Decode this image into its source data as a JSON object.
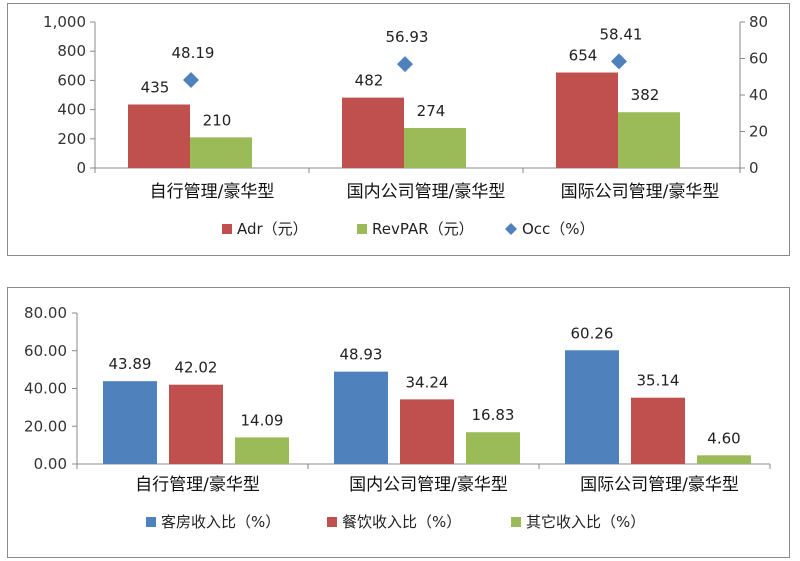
{
  "chart_data": [
    {
      "type": "bar",
      "categories": [
        "自行管理/豪华型",
        "国内公司管理/豪华型",
        "国际公司管理/豪华型"
      ],
      "series": [
        {
          "name": "Adr（元）",
          "type": "bar",
          "axis": "left",
          "color": "#c0504d",
          "values": [
            435,
            482,
            654
          ],
          "labels": [
            "435",
            "482",
            "654"
          ]
        },
        {
          "name": "RevPAR（元）",
          "type": "bar",
          "axis": "left",
          "color": "#9bbb59",
          "values": [
            210,
            274,
            382
          ],
          "labels": [
            "210",
            "274",
            "382"
          ]
        },
        {
          "name": "Occ（%）",
          "type": "scatter",
          "marker": "diamond",
          "axis": "right",
          "color": "#4f81bd",
          "values": [
            48.19,
            56.93,
            58.41
          ],
          "labels": [
            "48.19",
            "56.93",
            "58.41"
          ]
        }
      ],
      "ylim": [
        0,
        1000
      ],
      "yticks": [
        "0",
        "200",
        "400",
        "600",
        "800",
        "1,000"
      ],
      "y2lim": [
        0,
        80
      ],
      "y2ticks": [
        "0",
        "20",
        "40",
        "60",
        "80"
      ],
      "legend_position": "bottom",
      "grid": false
    },
    {
      "type": "bar",
      "categories": [
        "自行管理/豪华型",
        "国内公司管理/豪华型",
        "国际公司管理/豪华型"
      ],
      "series": [
        {
          "name": "客房收入比（%）",
          "color": "#4f81bd",
          "values": [
            43.89,
            48.93,
            60.26
          ],
          "labels": [
            "43.89",
            "48.93",
            "60.26"
          ]
        },
        {
          "name": "餐饮收入比（%）",
          "color": "#c0504d",
          "values": [
            42.02,
            34.24,
            35.14
          ],
          "labels": [
            "42.02",
            "34.24",
            "35.14"
          ]
        },
        {
          "name": "其它收入比（%）",
          "color": "#9bbb59",
          "values": [
            14.09,
            16.83,
            4.6
          ],
          "labels": [
            "14.09",
            "16.83",
            "4.60"
          ]
        }
      ],
      "ylim": [
        0,
        80
      ],
      "yticks": [
        "0.00",
        "20.00",
        "40.00",
        "60.00",
        "80.00"
      ],
      "legend_position": "bottom",
      "grid": false
    }
  ]
}
